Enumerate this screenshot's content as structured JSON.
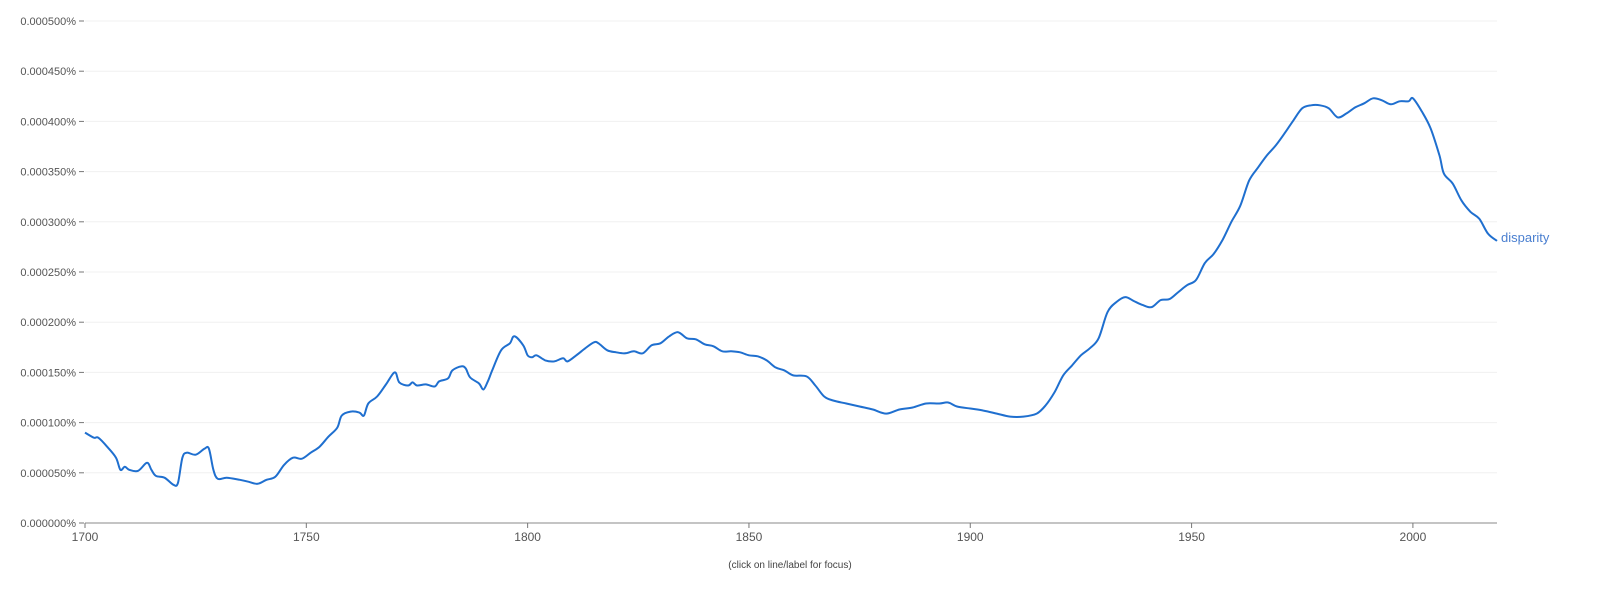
{
  "chart_data": {
    "type": "line",
    "title": "",
    "xlabel": "",
    "ylabel": "",
    "xlim": [
      1700,
      2019
    ],
    "ylim": [
      0,
      0.0005
    ],
    "grid": true,
    "y_ticks": [
      "0.000000%",
      "0.000050%",
      "0.000100%",
      "0.000150%",
      "0.000200%",
      "0.000250%",
      "0.000300%",
      "0.000350%",
      "0.000400%",
      "0.000450%",
      "0.000500%"
    ],
    "y_tick_values": [
      0,
      5e-05,
      0.0001,
      0.00015,
      0.0002,
      0.00025,
      0.0003,
      0.00035,
      0.0004,
      0.00045,
      0.0005
    ],
    "x_ticks": [
      "1700",
      "1750",
      "1800",
      "1850",
      "1900",
      "1950",
      "2000"
    ],
    "x_tick_values": [
      1700,
      1750,
      1800,
      1850,
      1900,
      1950,
      2000
    ],
    "footnote": "(click on line/label for focus)",
    "series": [
      {
        "name": "disparity",
        "color": "#1f6fcf",
        "x": [
          1700,
          1702,
          1703,
          1705,
          1707,
          1708,
          1709,
          1710,
          1712,
          1714,
          1715,
          1716,
          1718,
          1720,
          1721,
          1722,
          1723,
          1725,
          1727,
          1728,
          1729,
          1730,
          1732,
          1735,
          1737,
          1739,
          1741,
          1743,
          1745,
          1747,
          1749,
          1751,
          1753,
          1755,
          1757,
          1758,
          1760,
          1762,
          1763,
          1764,
          1766,
          1768,
          1770,
          1771,
          1773,
          1774,
          1775,
          1777,
          1779,
          1780,
          1782,
          1783,
          1785,
          1786,
          1787,
          1789,
          1790,
          1791,
          1792,
          1794,
          1796,
          1797,
          1799,
          1800,
          1801,
          1802,
          1804,
          1806,
          1808,
          1809,
          1811,
          1813,
          1815,
          1816,
          1818,
          1820,
          1822,
          1824,
          1826,
          1828,
          1830,
          1832,
          1834,
          1836,
          1838,
          1840,
          1842,
          1844,
          1846,
          1848,
          1850,
          1852,
          1854,
          1856,
          1858,
          1860,
          1863,
          1865,
          1867,
          1869,
          1872,
          1875,
          1878,
          1881,
          1884,
          1887,
          1890,
          1893,
          1895,
          1897,
          1900,
          1903,
          1906,
          1909,
          1912,
          1915,
          1917,
          1919,
          1921,
          1923,
          1925,
          1927,
          1929,
          1931,
          1933,
          1935,
          1937,
          1939,
          1941,
          1943,
          1945,
          1947,
          1949,
          1951,
          1953,
          1955,
          1957,
          1959,
          1961,
          1963,
          1965,
          1967,
          1969,
          1971,
          1973,
          1975,
          1977,
          1979,
          1981,
          1983,
          1985,
          1987,
          1989,
          1991,
          1993,
          1995,
          1997,
          1999,
          2000,
          2002,
          2004,
          2006,
          2007,
          2009,
          2011,
          2013,
          2015,
          2017,
          2019
        ],
        "y": [
          9e-05,
          8.5e-05,
          8.5e-05,
          7.6e-05,
          6.5e-05,
          5.3e-05,
          5.6e-05,
          5.3e-05,
          5.2e-05,
          6e-05,
          5.3e-05,
          4.7e-05,
          4.5e-05,
          3.8e-05,
          4e-05,
          6.5e-05,
          7e-05,
          6.8e-05,
          7.4e-05,
          7.4e-05,
          5.3e-05,
          4.4e-05,
          4.5e-05,
          4.3e-05,
          4.1e-05,
          3.9e-05,
          4.3e-05,
          4.6e-05,
          5.8e-05,
          6.5e-05,
          6.4e-05,
          7e-05,
          7.6e-05,
          8.6e-05,
          9.5e-05,
          0.000107,
          0.000111,
          0.00011,
          0.000107,
          0.000119,
          0.000126,
          0.000138,
          0.00015,
          0.00014,
          0.000137,
          0.00014,
          0.000137,
          0.000138,
          0.000136,
          0.000141,
          0.000144,
          0.000152,
          0.000156,
          0.000154,
          0.000145,
          0.000139,
          0.000133,
          0.000141,
          0.000152,
          0.000172,
          0.000179,
          0.000186,
          0.000177,
          0.000167,
          0.000165,
          0.000167,
          0.000162,
          0.000161,
          0.000164,
          0.000161,
          0.000167,
          0.000174,
          0.00018,
          0.000179,
          0.000172,
          0.00017,
          0.000169,
          0.000171,
          0.000169,
          0.000177,
          0.000179,
          0.000186,
          0.00019,
          0.000184,
          0.000183,
          0.000178,
          0.000176,
          0.000171,
          0.000171,
          0.00017,
          0.000167,
          0.000166,
          0.000162,
          0.000155,
          0.000152,
          0.000147,
          0.000146,
          0.000137,
          0.000126,
          0.000122,
          0.000119,
          0.000116,
          0.000113,
          0.000109,
          0.000113,
          0.000115,
          0.000119,
          0.000119,
          0.00012,
          0.000116,
          0.000114,
          0.000112,
          0.000109,
          0.000106,
          0.000106,
          0.000109,
          0.000117,
          0.00013,
          0.000147,
          0.000157,
          0.000167,
          0.000174,
          0.000184,
          0.00021,
          0.00022,
          0.000225,
          0.000221,
          0.000217,
          0.000215,
          0.000222,
          0.000223,
          0.00023,
          0.000237,
          0.000242,
          0.000259,
          0.000268,
          0.000282,
          0.0003,
          0.000316,
          0.000341,
          0.000354,
          0.000366,
          0.000376,
          0.000388,
          0.000401,
          0.000413,
          0.000416,
          0.000416,
          0.000413,
          0.000404,
          0.000408,
          0.000414,
          0.000418,
          0.000423,
          0.000421,
          0.000417,
          0.00042,
          0.00042,
          0.000423,
          0.00041,
          0.000393,
          0.000366,
          0.000348,
          0.000338,
          0.000321,
          0.00031,
          0.000303,
          0.000288,
          0.000281
        ]
      }
    ]
  }
}
